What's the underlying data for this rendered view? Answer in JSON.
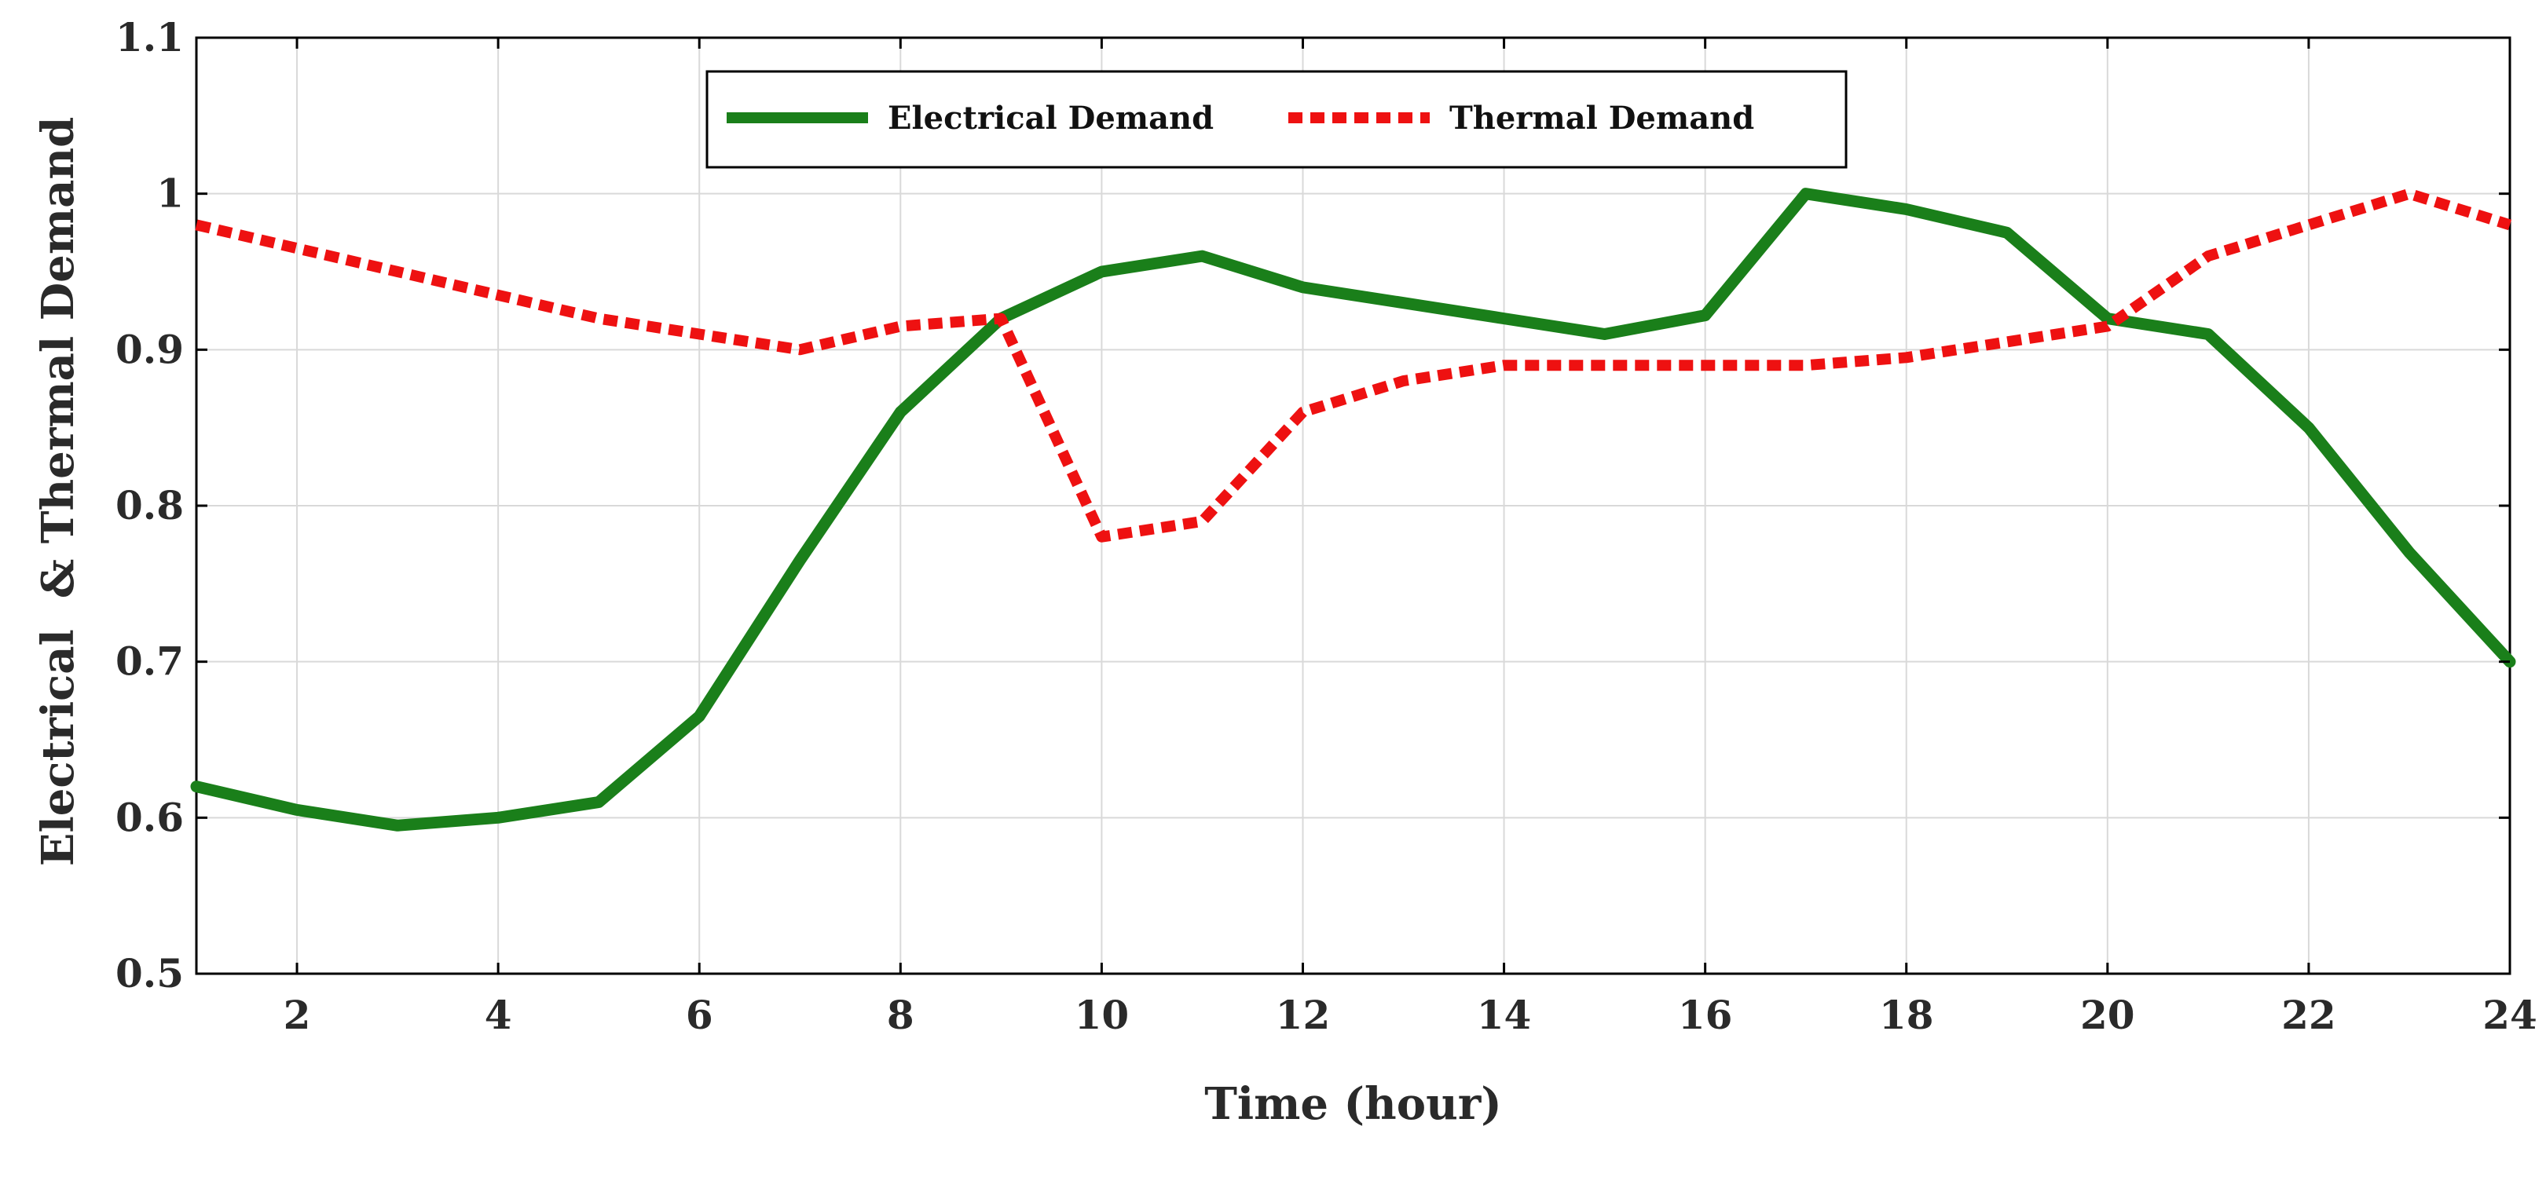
{
  "chart_data": {
    "type": "line",
    "title": "",
    "xlabel": "Time (hour)",
    "ylabel": "Electrical  & Thermal Demand",
    "xlim": [
      1,
      24
    ],
    "ylim": [
      0.5,
      1.1
    ],
    "xticks": [
      2,
      4,
      6,
      8,
      10,
      12,
      14,
      16,
      18,
      20,
      22,
      24
    ],
    "yticks": [
      0.5,
      0.6,
      0.7,
      0.8,
      0.9,
      1,
      1.1
    ],
    "ytick_labels": [
      "0.5",
      "0.6",
      "0.7",
      "0.8",
      "0.9",
      "1",
      "1.1"
    ],
    "grid": true,
    "legend_position": "top-center",
    "x": [
      1,
      2,
      3,
      4,
      5,
      6,
      7,
      8,
      9,
      10,
      11,
      12,
      13,
      14,
      15,
      16,
      17,
      18,
      19,
      20,
      21,
      22,
      23,
      24
    ],
    "series": [
      {
        "name": "Electrical Demand",
        "color": "#1a7f1a",
        "style": "solid",
        "values": [
          0.62,
          0.605,
          0.595,
          0.6,
          0.61,
          0.665,
          0.765,
          0.86,
          0.92,
          0.95,
          0.96,
          0.94,
          0.93,
          0.92,
          0.91,
          0.922,
          1.0,
          0.99,
          0.975,
          0.92,
          0.91,
          0.85,
          0.77,
          0.7
        ]
      },
      {
        "name": "Thermal Demand",
        "color": "#ee1111",
        "style": "dotted",
        "values": [
          0.98,
          0.965,
          0.95,
          0.935,
          0.92,
          0.91,
          0.9,
          0.915,
          0.92,
          0.78,
          0.79,
          0.86,
          0.88,
          0.89,
          0.89,
          0.89,
          0.89,
          0.895,
          0.905,
          0.915,
          0.96,
          0.98,
          1.0,
          0.98
        ]
      }
    ]
  }
}
